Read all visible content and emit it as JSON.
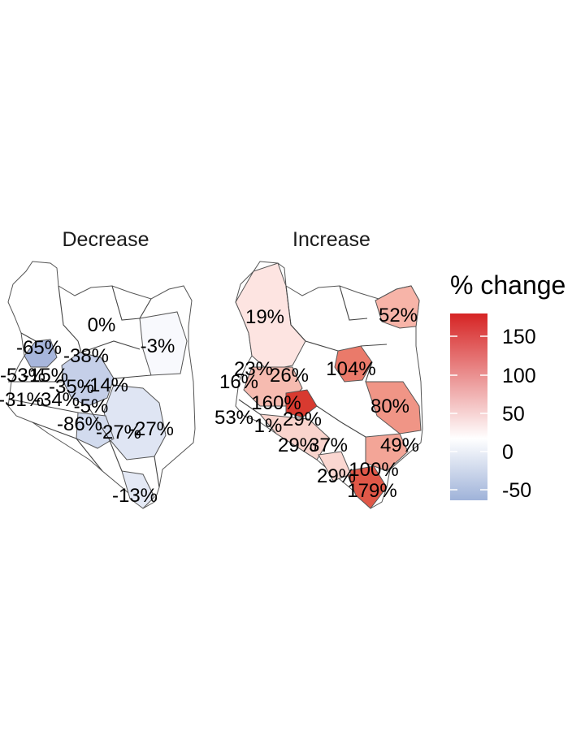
{
  "panels": [
    {
      "title": "Decrease",
      "labels": [
        "0%",
        "-3%",
        "-65%",
        "-38%",
        "-53%",
        "-31%",
        "-15%",
        "-35%",
        "-14%",
        "-86%",
        "-27%",
        "-27%",
        "-13%",
        "-5%",
        "-34%"
      ]
    },
    {
      "title": "Increase",
      "labels": [
        "19%",
        "52%",
        "23%",
        "104%",
        "16%",
        "80%",
        "26%",
        "53%",
        "1%",
        "29%",
        "29%",
        "37%",
        "49%",
        "29%",
        "100%",
        "179%",
        "160%"
      ]
    }
  ],
  "legend": {
    "title": "% change",
    "ticks": [
      "150",
      "100",
      "50",
      "0",
      "-50"
    ],
    "colors": {
      "low": "#9fb3d9",
      "mid": "#ffffff",
      "high": "#d62424"
    }
  }
}
